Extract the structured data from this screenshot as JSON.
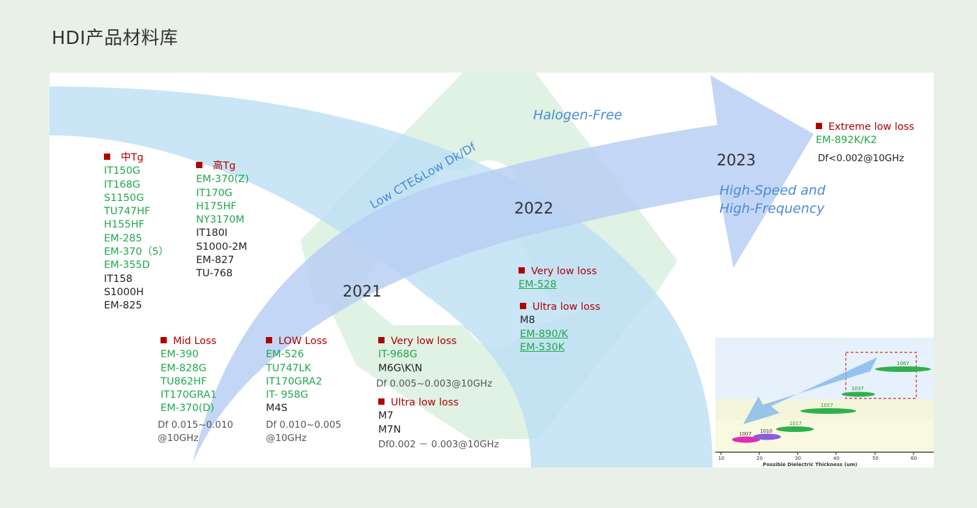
{
  "page": {
    "title": "HDI产品材料库"
  },
  "years": {
    "y2021": "2021",
    "y2022": "2022",
    "y2023": "2023"
  },
  "slogans": {
    "halogen": "Halogen-Free",
    "low_cte": "Low CTE&Low Dk/Df",
    "hs_line1": "High-Speed and",
    "hs_line2": "High-Frequency"
  },
  "groups": {
    "mid_tg": {
      "title": "中Tg",
      "items": [
        "IT150G",
        "IT168G",
        "S1150G",
        "TU747HF",
        "H155HF",
        "EM-285",
        "EM-370（5）",
        "EM-355D",
        "IT158",
        "S1000H",
        "EM-825"
      ]
    },
    "high_tg": {
      "title": "高Tg",
      "items": [
        "EM-370(Z)",
        "IT170G",
        "H175HF",
        "NY3170M",
        "IT180I",
        "S1000-2M",
        "EM-827",
        "TU-768"
      ]
    },
    "mid_loss": {
      "title": "Mid Loss",
      "items": [
        "EM-390",
        "EM-828G",
        "TU862HF",
        "IT170GRA1",
        "EM-370(D)"
      ],
      "note1": "Df 0.015~0.010",
      "note2": "@10GHz"
    },
    "low_loss": {
      "title": "LOW Loss",
      "items": [
        "EM-526",
        "TU747LK",
        "IT170GRA2",
        "IT- 958G",
        "M4S"
      ],
      "note1": "Df 0.010~0.005",
      "note2": "@10GHz"
    },
    "very_low_2021": {
      "title": "Very low loss",
      "items": [
        "IT-968G",
        "M6G\\K\\N"
      ],
      "note": "Df 0.005~0.003@10GHz"
    },
    "ultra_low_2021": {
      "title": "Ultra low loss",
      "items": [
        "M7",
        "M7N"
      ],
      "note": "Df0.002 － 0.003@10GHz"
    },
    "very_low_2022": {
      "title": "Very low loss",
      "items": [
        "EM-528"
      ]
    },
    "ultra_low_2022": {
      "title": "Ultra low loss",
      "items": [
        "M8",
        "EM-890/K",
        "EM-530K"
      ]
    },
    "extreme_2023": {
      "title": "Extreme low loss",
      "items": [
        "EM-892K/K2"
      ],
      "note": "Df<0.002@10GHz"
    }
  },
  "inset_chart": {
    "xlabel": "Possible Dielectric Thickness (um)",
    "x_ticks": [
      "10",
      "20",
      "30",
      "40",
      "50",
      "60"
    ],
    "labels": [
      "1007",
      "1010",
      "1017",
      "1027",
      "1037",
      "1067"
    ]
  },
  "colors": {
    "arrow_light_blue": "#bfe1f4",
    "arrow_blue": "#bcd2f4",
    "recycle_green": "#dff2e3",
    "item_green": "#1fa84a",
    "title_red": "#b00000"
  }
}
